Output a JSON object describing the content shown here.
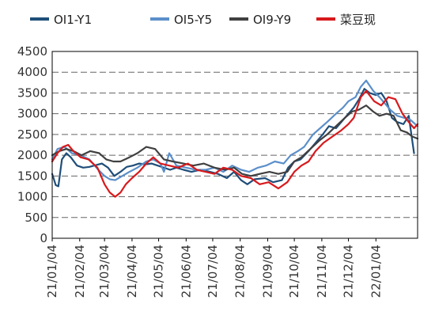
{
  "chart_data": {
    "type": "line",
    "title": "",
    "xlabel": "",
    "ylabel": "",
    "ylim": [
      0,
      4500
    ],
    "yticks": [
      0,
      500,
      1000,
      1500,
      2000,
      2500,
      3000,
      3500,
      4000,
      4500
    ],
    "grid": "horizontal dashed",
    "legend_position": "top",
    "x_tick_labels": [
      "21/01/04",
      "21/02/04",
      "21/03/04",
      "21/04/04",
      "21/05/04",
      "21/06/04",
      "21/07/04",
      "21/08/04",
      "21/09/04",
      "21/10/04",
      "21/11/04",
      "21/12/04",
      "22/01/04"
    ],
    "x_range": [
      "2021-01-04",
      "2022-02-20"
    ],
    "series": [
      {
        "name": "OI1-Y1",
        "color": "#1f4e79",
        "points": [
          [
            "2021-01-04",
            1550
          ],
          [
            "2021-01-08",
            1280
          ],
          [
            "2021-01-11",
            1250
          ],
          [
            "2021-01-15",
            1900
          ],
          [
            "2021-01-20",
            2050
          ],
          [
            "2021-01-25",
            1950
          ],
          [
            "2021-02-01",
            1750
          ],
          [
            "2021-02-08",
            1700
          ],
          [
            "2021-02-15",
            1720
          ],
          [
            "2021-02-22",
            1760
          ],
          [
            "2021-03-01",
            1800
          ],
          [
            "2021-03-08",
            1700
          ],
          [
            "2021-03-15",
            1500
          ],
          [
            "2021-03-22",
            1600
          ],
          [
            "2021-03-29",
            1720
          ],
          [
            "2021-04-05",
            1750
          ],
          [
            "2021-04-12",
            1800
          ],
          [
            "2021-04-19",
            1780
          ],
          [
            "2021-04-26",
            1800
          ],
          [
            "2021-05-03",
            1750
          ],
          [
            "2021-05-10",
            1700
          ],
          [
            "2021-05-17",
            1650
          ],
          [
            "2021-05-24",
            1700
          ],
          [
            "2021-06-01",
            1650
          ],
          [
            "2021-06-10",
            1600
          ],
          [
            "2021-06-20",
            1650
          ],
          [
            "2021-07-01",
            1600
          ],
          [
            "2021-07-10",
            1550
          ],
          [
            "2021-07-20",
            1450
          ],
          [
            "2021-07-28",
            1600
          ],
          [
            "2021-08-05",
            1400
          ],
          [
            "2021-08-12",
            1300
          ],
          [
            "2021-08-20",
            1420
          ],
          [
            "2021-09-01",
            1450
          ],
          [
            "2021-09-10",
            1350
          ],
          [
            "2021-09-20",
            1400
          ],
          [
            "2021-09-27",
            1700
          ],
          [
            "2021-10-04",
            1850
          ],
          [
            "2021-10-11",
            1900
          ],
          [
            "2021-10-20",
            2100
          ],
          [
            "2021-10-28",
            2300
          ],
          [
            "2021-11-05",
            2500
          ],
          [
            "2021-11-12",
            2700
          ],
          [
            "2021-11-20",
            2650
          ],
          [
            "2021-11-28",
            2850
          ],
          [
            "2021-12-04",
            3000
          ],
          [
            "2021-12-10",
            3150
          ],
          [
            "2021-12-16",
            3350
          ],
          [
            "2021-12-22",
            3600
          ],
          [
            "2021-12-28",
            3500
          ],
          [
            "2022-01-04",
            3450
          ],
          [
            "2022-01-10",
            3500
          ],
          [
            "2022-01-16",
            3300
          ],
          [
            "2022-01-22",
            2900
          ],
          [
            "2022-01-28",
            2800
          ],
          [
            "2022-02-04",
            2750
          ],
          [
            "2022-02-10",
            2950
          ],
          [
            "2022-02-16",
            2050
          ]
        ]
      },
      {
        "name": "OI5-Y5",
        "color": "#5b8fc9",
        "points": [
          [
            "2021-01-04",
            1900
          ],
          [
            "2021-01-10",
            2150
          ],
          [
            "2021-01-18",
            2200
          ],
          [
            "2021-01-26",
            2050
          ],
          [
            "2021-02-05",
            2000
          ],
          [
            "2021-02-15",
            1900
          ],
          [
            "2021-02-25",
            1650
          ],
          [
            "2021-03-04",
            1500
          ],
          [
            "2021-03-10",
            1420
          ],
          [
            "2021-03-16",
            1400
          ],
          [
            "2021-03-24",
            1500
          ],
          [
            "2021-04-01",
            1600
          ],
          [
            "2021-04-10",
            1700
          ],
          [
            "2021-04-20",
            1850
          ],
          [
            "2021-04-28",
            1900
          ],
          [
            "2021-05-06",
            1800
          ],
          [
            "2021-05-10",
            1600
          ],
          [
            "2021-05-16",
            2050
          ],
          [
            "2021-05-24",
            1750
          ],
          [
            "2021-06-04",
            1700
          ],
          [
            "2021-06-15",
            1650
          ],
          [
            "2021-06-26",
            1650
          ],
          [
            "2021-07-06",
            1700
          ],
          [
            "2021-07-16",
            1600
          ],
          [
            "2021-07-26",
            1750
          ],
          [
            "2021-08-05",
            1650
          ],
          [
            "2021-08-14",
            1600
          ],
          [
            "2021-08-24",
            1700
          ],
          [
            "2021-09-02",
            1750
          ],
          [
            "2021-09-12",
            1850
          ],
          [
            "2021-09-22",
            1800
          ],
          [
            "2021-09-30",
            2000
          ],
          [
            "2021-10-08",
            2100
          ],
          [
            "2021-10-15",
            2200
          ],
          [
            "2021-10-25",
            2500
          ],
          [
            "2021-11-02",
            2650
          ],
          [
            "2021-11-10",
            2800
          ],
          [
            "2021-11-20",
            3000
          ],
          [
            "2021-11-28",
            3150
          ],
          [
            "2021-12-04",
            3300
          ],
          [
            "2021-12-12",
            3400
          ],
          [
            "2021-12-18",
            3650
          ],
          [
            "2021-12-24",
            3800
          ],
          [
            "2022-01-01",
            3550
          ],
          [
            "2022-01-08",
            3400
          ],
          [
            "2022-01-14",
            3250
          ],
          [
            "2022-01-20",
            3100
          ],
          [
            "2022-01-28",
            2950
          ],
          [
            "2022-02-05",
            2900
          ],
          [
            "2022-02-12",
            2850
          ],
          [
            "2022-02-20",
            2700
          ]
        ]
      },
      {
        "name": "OI9-Y9",
        "color": "#404040",
        "points": [
          [
            "2021-01-04",
            2000
          ],
          [
            "2021-01-12",
            2100
          ],
          [
            "2021-01-20",
            2150
          ],
          [
            "2021-01-28",
            2100
          ],
          [
            "2021-02-06",
            2000
          ],
          [
            "2021-02-16",
            2100
          ],
          [
            "2021-02-26",
            2050
          ],
          [
            "2021-03-06",
            1900
          ],
          [
            "2021-03-14",
            1850
          ],
          [
            "2021-03-22",
            1850
          ],
          [
            "2021-04-01",
            1950
          ],
          [
            "2021-04-10",
            2050
          ],
          [
            "2021-04-20",
            2200
          ],
          [
            "2021-04-30",
            2150
          ],
          [
            "2021-05-10",
            1900
          ],
          [
            "2021-05-20",
            1850
          ],
          [
            "2021-06-01",
            1800
          ],
          [
            "2021-06-12",
            1750
          ],
          [
            "2021-06-24",
            1800
          ],
          [
            "2021-07-06",
            1700
          ],
          [
            "2021-07-18",
            1650
          ],
          [
            "2021-07-28",
            1700
          ],
          [
            "2021-08-06",
            1550
          ],
          [
            "2021-08-16",
            1500
          ],
          [
            "2021-08-26",
            1550
          ],
          [
            "2021-09-06",
            1600
          ],
          [
            "2021-09-16",
            1550
          ],
          [
            "2021-09-26",
            1600
          ],
          [
            "2021-10-04",
            1850
          ],
          [
            "2021-10-12",
            1950
          ],
          [
            "2021-10-22",
            2150
          ],
          [
            "2021-11-01",
            2350
          ],
          [
            "2021-11-10",
            2500
          ],
          [
            "2021-11-20",
            2700
          ],
          [
            "2021-11-30",
            2900
          ],
          [
            "2021-12-08",
            3050
          ],
          [
            "2021-12-16",
            3100
          ],
          [
            "2021-12-24",
            3200
          ],
          [
            "2022-01-01",
            3050
          ],
          [
            "2022-01-08",
            2950
          ],
          [
            "2022-01-16",
            3000
          ],
          [
            "2022-01-24",
            2950
          ],
          [
            "2022-02-01",
            2600
          ],
          [
            "2022-02-08",
            2550
          ],
          [
            "2022-02-14",
            2450
          ],
          [
            "2022-02-20",
            2400
          ]
        ]
      },
      {
        "name": "菜豆现",
        "color": "#d7191c",
        "points": [
          [
            "2021-01-04",
            1850
          ],
          [
            "2021-01-10",
            2050
          ],
          [
            "2021-01-16",
            2200
          ],
          [
            "2021-01-22",
            2250
          ],
          [
            "2021-01-28",
            2100
          ],
          [
            "2021-02-05",
            1950
          ],
          [
            "2021-02-14",
            1900
          ],
          [
            "2021-02-24",
            1700
          ],
          [
            "2021-03-04",
            1300
          ],
          [
            "2021-03-10",
            1100
          ],
          [
            "2021-03-16",
            1000
          ],
          [
            "2021-03-22",
            1100
          ],
          [
            "2021-03-28",
            1300
          ],
          [
            "2021-04-04",
            1450
          ],
          [
            "2021-04-12",
            1600
          ],
          [
            "2021-04-20",
            1800
          ],
          [
            "2021-04-28",
            1950
          ],
          [
            "2021-05-06",
            1800
          ],
          [
            "2021-05-16",
            1750
          ],
          [
            "2021-05-26",
            1700
          ],
          [
            "2021-06-06",
            1800
          ],
          [
            "2021-06-16",
            1650
          ],
          [
            "2021-06-26",
            1600
          ],
          [
            "2021-07-06",
            1550
          ],
          [
            "2021-07-16",
            1700
          ],
          [
            "2021-07-26",
            1650
          ],
          [
            "2021-08-05",
            1500
          ],
          [
            "2021-08-16",
            1450
          ],
          [
            "2021-08-26",
            1300
          ],
          [
            "2021-09-05",
            1350
          ],
          [
            "2021-09-16",
            1200
          ],
          [
            "2021-09-26",
            1350
          ],
          [
            "2021-10-04",
            1600
          ],
          [
            "2021-10-12",
            1750
          ],
          [
            "2021-10-20",
            1850
          ],
          [
            "2021-10-28",
            2100
          ],
          [
            "2021-11-06",
            2300
          ],
          [
            "2021-11-16",
            2450
          ],
          [
            "2021-11-26",
            2600
          ],
          [
            "2021-12-04",
            2750
          ],
          [
            "2021-12-10",
            2900
          ],
          [
            "2021-12-18",
            3400
          ],
          [
            "2021-12-24",
            3550
          ],
          [
            "2022-01-02",
            3300
          ],
          [
            "2022-01-10",
            3200
          ],
          [
            "2022-01-18",
            3400
          ],
          [
            "2022-01-26",
            3350
          ],
          [
            "2022-02-03",
            3000
          ],
          [
            "2022-02-10",
            2800
          ],
          [
            "2022-02-16",
            2650
          ],
          [
            "2022-02-20",
            2750
          ]
        ]
      }
    ]
  }
}
